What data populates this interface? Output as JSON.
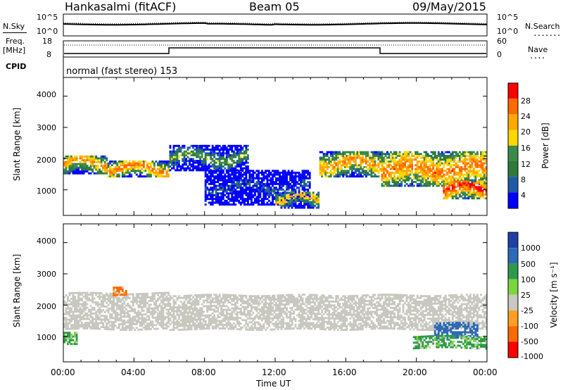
{
  "header": {
    "station": "Hankasalmi (fitACF)",
    "beam": "Beam 05",
    "date": "09/May/2015"
  },
  "noise_panel": {
    "left_label": "N.Sky",
    "right_label": "N.Search",
    "y_ticks_left": [
      "10^5",
      "10^0"
    ],
    "y_ticks_right": [
      "10^5",
      "10^0"
    ]
  },
  "freq_panel": {
    "left_label_top": "Freq.",
    "left_label_unit": "[MHz]",
    "right_label": "Nave",
    "y_ticks_left": [
      "18",
      "8"
    ],
    "y_ticks_right": [
      "60",
      "0"
    ]
  },
  "cpid": {
    "label": "CPID",
    "text": "normal (fast stereo) 153"
  },
  "power_panel": {
    "ylabel": "Slant Range [km]",
    "y_ticks": [
      "4000",
      "3000",
      "2000",
      "1000"
    ],
    "colorbar_label": "Power [dB]",
    "colorbar_ticks": [
      "28",
      "24",
      "20",
      "16",
      "12",
      "8",
      "4"
    ],
    "colors": [
      "#ff0000",
      "#ff6a00",
      "#ffa800",
      "#ffd700",
      "#3c8a4a",
      "#2d7a3a",
      "#1f5aa6",
      "#0000ff"
    ]
  },
  "velocity_panel": {
    "ylabel": "Slant Range [km]",
    "y_ticks": [
      "4000",
      "3000",
      "2000",
      "1000"
    ],
    "colorbar_label": "Velocity [m s⁻¹]",
    "colorbar_ticks": [
      "1000",
      "500",
      "100",
      "25",
      "-25",
      "-100",
      "-500",
      "-1000"
    ],
    "colors": [
      "#1f3fa6",
      "#2d6ab3",
      "#2d9a4a",
      "#7ad63c",
      "#c8c8c0",
      "#ffa020",
      "#ff6a00",
      "#ff0000"
    ]
  },
  "x_axis": {
    "ticks": [
      "00:00",
      "04:00",
      "08:00",
      "12:00",
      "16:00",
      "20:00",
      "00:00"
    ],
    "label": "Time UT"
  },
  "chart_data": [
    {
      "type": "heatmap",
      "title": "Power [dB]",
      "xlabel": "Time UT",
      "ylabel": "Slant Range [km]",
      "xlim": [
        "00:00",
        "24:00"
      ],
      "ylim": [
        180,
        4600
      ],
      "colorbar": [
        4,
        8,
        12,
        16,
        20,
        24,
        28
      ],
      "bands": [
        {
          "t0": 0.0,
          "t1": 2.5,
          "r0": 1500,
          "r1": 2100,
          "power_db": 22
        },
        {
          "t0": 2.5,
          "t1": 6.0,
          "r0": 1400,
          "r1": 1900,
          "power_db": 24
        },
        {
          "t0": 6.0,
          "t1": 10.5,
          "r0": 1600,
          "r1": 2400,
          "power_db": 14
        },
        {
          "t0": 8.0,
          "t1": 14.0,
          "r0": 500,
          "r1": 1600,
          "power_db": 8
        },
        {
          "t0": 12.0,
          "t1": 14.5,
          "r0": 400,
          "r1": 900,
          "power_db": 20
        },
        {
          "t0": 14.5,
          "t1": 18.0,
          "r0": 1400,
          "r1": 2200,
          "power_db": 22
        },
        {
          "t0": 18.0,
          "t1": 24.0,
          "r0": 1100,
          "r1": 2200,
          "power_db": 24
        },
        {
          "t0": 21.5,
          "t1": 24.0,
          "r0": 700,
          "r1": 1300,
          "power_db": 28
        }
      ]
    },
    {
      "type": "heatmap",
      "title": "Velocity [m s-1]",
      "xlabel": "Time UT",
      "ylabel": "Slant Range [km]",
      "xlim": [
        "00:00",
        "24:00"
      ],
      "ylim": [
        180,
        4600
      ],
      "colorbar": [
        -1000,
        -500,
        -100,
        -25,
        25,
        100,
        500,
        1000
      ],
      "bands": [
        {
          "t0": 0.0,
          "t1": 6.0,
          "r0": 1200,
          "r1": 2400,
          "velocity": 0
        },
        {
          "t0": 0.0,
          "t1": 0.8,
          "r0": 700,
          "r1": 1100,
          "velocity": 100
        },
        {
          "t0": 2.8,
          "t1": 3.5,
          "r0": 2300,
          "r1": 2600,
          "velocity": -100
        },
        {
          "t0": 6.0,
          "t1": 24.0,
          "r0": 1200,
          "r1": 2300,
          "velocity": 0
        },
        {
          "t0": 21.0,
          "t1": 23.5,
          "r0": 900,
          "r1": 1400,
          "velocity": 500
        },
        {
          "t0": 19.8,
          "t1": 24.0,
          "r0": 600,
          "r1": 1000,
          "velocity": 100
        }
      ]
    }
  ]
}
